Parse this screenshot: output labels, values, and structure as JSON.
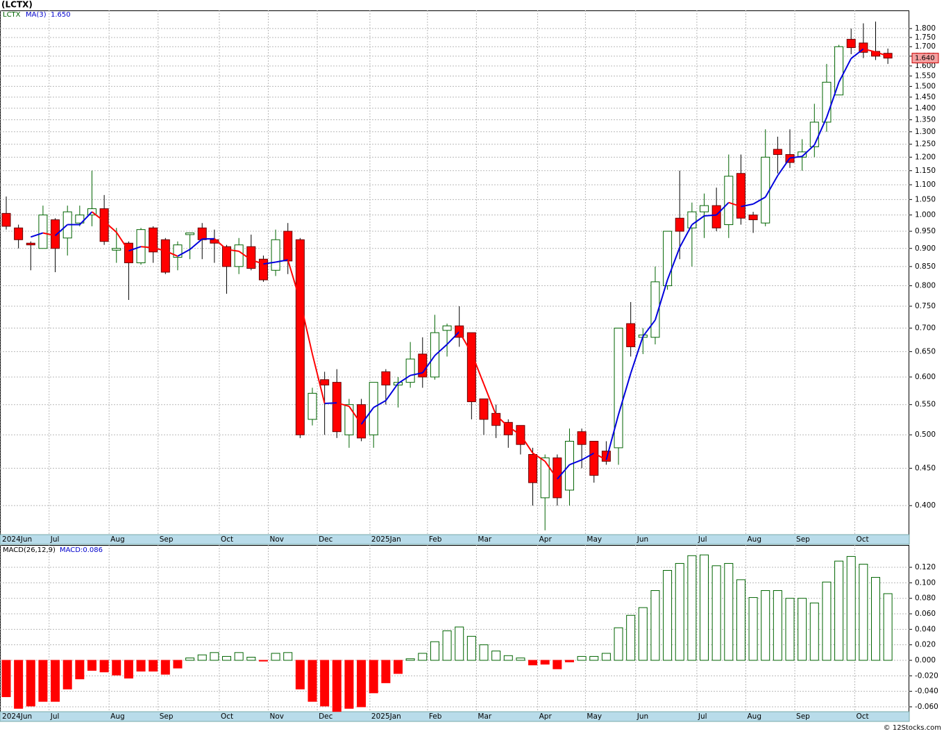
{
  "chart_data": [
    {
      "type": "candlestick",
      "title": "(LCTX)",
      "symbol": "LCTX",
      "log": true,
      "grid": true,
      "up_color": "#006400",
      "down_color": "#ff0000",
      "categories": [
        null,
        null,
        null,
        null,
        null,
        null,
        null,
        null,
        null,
        null,
        null,
        null,
        null,
        null,
        null,
        null,
        null,
        null,
        null,
        null,
        null,
        null,
        null,
        null,
        null,
        null,
        null,
        null,
        null,
        null,
        null,
        null,
        null,
        null,
        null,
        null,
        null,
        null,
        null,
        null,
        null,
        null,
        null,
        null,
        null,
        null,
        null,
        null,
        null,
        null,
        null,
        null,
        null,
        null,
        null,
        null,
        null,
        null,
        null,
        null,
        null,
        null,
        null,
        null,
        null,
        null,
        null,
        null,
        null,
        null,
        null,
        null,
        null
      ],
      "open": [
        1.005,
        0.96,
        0.915,
        0.9,
        0.985,
        0.93,
        0.975,
        1.0,
        1.02,
        0.895,
        0.915,
        0.86,
        0.96,
        0.925,
        0.875,
        0.94,
        0.96,
        0.925,
        0.905,
        0.85,
        0.905,
        0.87,
        0.84,
        0.95,
        0.925,
        0.525,
        0.595,
        0.59,
        0.5,
        0.55,
        0.5,
        0.61,
        0.585,
        0.59,
        0.645,
        0.6,
        0.695,
        0.705,
        0.69,
        0.56,
        0.535,
        0.52,
        0.515,
        0.47,
        0.41,
        0.465,
        0.42,
        0.505,
        0.49,
        0.475,
        0.48,
        0.71,
        0.68,
        0.68,
        0.8,
        0.99,
        0.96,
        1.01,
        1.03,
        0.97,
        1.14,
        1.0,
        0.975,
        1.23,
        1.21,
        1.2,
        1.24,
        1.34,
        1.46,
        1.74,
        1.72,
        1.675,
        1.665
      ],
      "high": [
        1.06,
        0.97,
        0.92,
        1.03,
        0.99,
        1.03,
        1.03,
        1.15,
        1.065,
        0.96,
        0.92,
        0.96,
        0.965,
        0.93,
        0.92,
        0.945,
        0.975,
        0.955,
        0.91,
        0.93,
        0.94,
        0.88,
        0.955,
        0.975,
        0.93,
        0.58,
        0.61,
        0.615,
        0.56,
        0.56,
        0.59,
        0.615,
        0.6,
        0.67,
        0.68,
        0.73,
        0.71,
        0.75,
        0.69,
        0.56,
        0.55,
        0.525,
        0.515,
        0.48,
        0.47,
        0.47,
        0.51,
        0.51,
        0.49,
        0.49,
        0.7,
        0.76,
        0.7,
        0.85,
        0.95,
        1.15,
        1.04,
        1.07,
        1.09,
        1.21,
        1.21,
        1.01,
        1.31,
        1.28,
        1.31,
        1.27,
        1.42,
        1.61,
        1.71,
        1.8,
        1.83,
        1.84,
        1.69
      ],
      "low": [
        0.955,
        0.9,
        0.84,
        0.9,
        0.835,
        0.88,
        0.965,
        0.965,
        0.91,
        0.86,
        0.765,
        0.855,
        0.86,
        0.83,
        0.84,
        0.87,
        0.87,
        0.86,
        0.78,
        0.83,
        0.84,
        0.81,
        0.825,
        0.83,
        0.495,
        0.515,
        0.5,
        0.495,
        0.48,
        0.49,
        0.48,
        0.55,
        0.545,
        0.58,
        0.58,
        0.595,
        0.64,
        0.66,
        0.525,
        0.5,
        0.495,
        0.48,
        0.47,
        0.4,
        0.37,
        0.4,
        0.4,
        0.45,
        0.43,
        0.455,
        0.455,
        0.64,
        0.645,
        0.665,
        0.79,
        0.87,
        0.85,
        0.93,
        0.95,
        0.93,
        0.97,
        0.945,
        0.965,
        1.14,
        1.16,
        1.15,
        1.2,
        1.3,
        1.46,
        1.66,
        1.64,
        1.63,
        1.61
      ],
      "close": [
        0.965,
        0.925,
        0.91,
        1.0,
        0.9,
        1.01,
        1.0,
        1.02,
        0.92,
        0.9,
        0.86,
        0.955,
        0.89,
        0.835,
        0.91,
        0.945,
        0.925,
        0.915,
        0.85,
        0.91,
        0.845,
        0.815,
        0.925,
        0.865,
        0.5,
        0.57,
        0.585,
        0.505,
        0.55,
        0.495,
        0.59,
        0.585,
        0.59,
        0.635,
        0.6,
        0.69,
        0.705,
        0.68,
        0.555,
        0.525,
        0.515,
        0.5,
        0.485,
        0.43,
        0.465,
        0.41,
        0.49,
        0.485,
        0.44,
        0.46,
        0.7,
        0.66,
        0.685,
        0.81,
        0.95,
        0.95,
        1.01,
        1.03,
        0.96,
        1.13,
        0.99,
        0.985,
        1.2,
        1.21,
        1.18,
        1.22,
        1.34,
        1.52,
        1.7,
        1.695,
        1.67,
        1.65,
        1.64
      ],
      "ma": {
        "name": "MA(3)",
        "value_label": "1.650",
        "up_color": "#0000dd",
        "down_color": "#ff0000",
        "values": [
          null,
          null,
          0.933,
          0.945,
          0.937,
          0.97,
          0.97,
          1.01,
          0.98,
          0.947,
          0.893,
          0.905,
          0.902,
          0.893,
          0.878,
          0.897,
          0.927,
          0.928,
          0.897,
          0.892,
          0.868,
          0.857,
          0.862,
          0.868,
          0.763,
          0.645,
          0.552,
          0.553,
          0.547,
          0.517,
          0.545,
          0.557,
          0.588,
          0.603,
          0.608,
          0.642,
          0.665,
          0.692,
          0.647,
          0.587,
          0.532,
          0.513,
          0.5,
          0.472,
          0.46,
          0.435,
          0.455,
          0.462,
          0.472,
          0.462,
          0.533,
          0.607,
          0.682,
          0.718,
          0.815,
          0.903,
          0.97,
          0.997,
          1.0,
          1.04,
          1.027,
          1.035,
          1.058,
          1.132,
          1.197,
          1.203,
          1.247,
          1.36,
          1.52,
          1.638,
          1.688,
          1.672,
          1.65
        ]
      },
      "last_price": {
        "value": 1.64,
        "label": "1.640"
      },
      "ylim": [
        0.365,
        1.906
      ],
      "yticks": [
        {
          "value": 0.4,
          "label": "0.400"
        },
        {
          "value": 0.45,
          "label": "0.450"
        },
        {
          "value": 0.5,
          "label": "0.500"
        },
        {
          "value": 0.55,
          "label": "0.550"
        },
        {
          "value": 0.6,
          "label": "0.600"
        },
        {
          "value": 0.65,
          "label": "0.650"
        },
        {
          "value": 0.7,
          "label": "0.700"
        },
        {
          "value": 0.75,
          "label": "0.750"
        },
        {
          "value": 0.8,
          "label": "0.800"
        },
        {
          "value": 0.85,
          "label": "0.850"
        },
        {
          "value": 0.9,
          "label": "0.900"
        },
        {
          "value": 0.95,
          "label": "0.950"
        },
        {
          "value": 1.0,
          "label": "1.000"
        },
        {
          "value": 1.05,
          "label": "1.050"
        },
        {
          "value": 1.1,
          "label": "1.100"
        },
        {
          "value": 1.15,
          "label": "1.150"
        },
        {
          "value": 1.2,
          "label": "1.200"
        },
        {
          "value": 1.25,
          "label": "1.250"
        },
        {
          "value": 1.3,
          "label": "1.300"
        },
        {
          "value": 1.35,
          "label": "1.350"
        },
        {
          "value": 1.4,
          "label": "1.400"
        },
        {
          "value": 1.45,
          "label": "1.450"
        },
        {
          "value": 1.5,
          "label": "1.500"
        },
        {
          "value": 1.55,
          "label": "1.550"
        },
        {
          "value": 1.6,
          "label": "1.600"
        },
        {
          "value": 1.65,
          "label": "1.650"
        },
        {
          "value": 1.7,
          "label": "1.700"
        },
        {
          "value": 1.75,
          "label": "1.750"
        },
        {
          "value": 1.8,
          "label": "1.800"
        }
      ],
      "xlim": [
        -0.51,
        73.75
      ],
      "xticks": [
        {
          "value": -0.45,
          "label": "2024Jun"
        },
        {
          "value": 3.5,
          "label": "Jul"
        },
        {
          "value": 8.4,
          "label": "Aug"
        },
        {
          "value": 12.4,
          "label": "Sep"
        },
        {
          "value": 17.4,
          "label": "Oct"
        },
        {
          "value": 21.4,
          "label": "Nov"
        },
        {
          "value": 25.4,
          "label": "Dec"
        },
        {
          "value": 29.7,
          "label": "2025Jan"
        },
        {
          "value": 34.4,
          "label": "Feb"
        },
        {
          "value": 38.4,
          "label": "Mar"
        },
        {
          "value": 43.4,
          "label": "Apr"
        },
        {
          "value": 47.3,
          "label": "May"
        },
        {
          "value": 51.4,
          "label": "Jun"
        },
        {
          "value": 56.4,
          "label": "Jul"
        },
        {
          "value": 60.4,
          "label": "Aug"
        },
        {
          "value": 64.4,
          "label": "Sep"
        },
        {
          "value": 69.3,
          "label": "Oct"
        }
      ]
    },
    {
      "type": "bar",
      "name": "MACD(26,12,9)",
      "value_label": "MACD:0.086",
      "grid": true,
      "up_color": "#006400",
      "down_color": "#ff0000",
      "values": [
        -0.047,
        -0.062,
        -0.059,
        -0.053,
        -0.053,
        -0.037,
        -0.024,
        -0.013,
        -0.015,
        -0.019,
        -0.023,
        -0.014,
        -0.014,
        -0.018,
        -0.01,
        0.003,
        0.007,
        0.01,
        0.005,
        0.01,
        0.004,
        -0.001,
        0.009,
        0.01,
        -0.037,
        -0.053,
        -0.059,
        -0.066,
        -0.062,
        -0.06,
        -0.042,
        -0.029,
        -0.017,
        0.002,
        0.009,
        0.024,
        0.038,
        0.043,
        0.031,
        0.02,
        0.012,
        0.006,
        0.003,
        -0.006,
        -0.005,
        -0.011,
        -0.002,
        0.005,
        0.005,
        0.009,
        0.042,
        0.058,
        0.068,
        0.09,
        0.116,
        0.125,
        0.135,
        0.136,
        0.122,
        0.125,
        0.104,
        0.081,
        0.09,
        0.09,
        0.08,
        0.08,
        0.074,
        0.101,
        0.128,
        0.134,
        0.124,
        0.107,
        0.086
      ],
      "ylim": [
        -0.0663,
        0.1487
      ],
      "yticks": [
        {
          "value": -0.06,
          "label": "-0.060"
        },
        {
          "value": -0.04,
          "label": "-0.040"
        },
        {
          "value": -0.02,
          "label": "-0.020"
        },
        {
          "value": 0,
          "label": "0.000"
        },
        {
          "value": 0.02,
          "label": "0.020"
        },
        {
          "value": 0.04,
          "label": "0.040"
        },
        {
          "value": 0.06,
          "label": "0.060"
        },
        {
          "value": 0.08,
          "label": "0.080"
        },
        {
          "value": 0.1,
          "label": "0.100"
        },
        {
          "value": 0.12,
          "label": "0.120"
        }
      ],
      "xlim": [
        -0.51,
        73.75
      ],
      "xticks": [
        {
          "value": -0.45,
          "label": "2024Jun"
        },
        {
          "value": 3.5,
          "label": "Jul"
        },
        {
          "value": 8.4,
          "label": "Aug"
        },
        {
          "value": 12.4,
          "label": "Sep"
        },
        {
          "value": 17.4,
          "label": "Oct"
        },
        {
          "value": 21.4,
          "label": "Nov"
        },
        {
          "value": 25.4,
          "label": "Dec"
        },
        {
          "value": 29.7,
          "label": "2025Jan"
        },
        {
          "value": 34.4,
          "label": "Feb"
        },
        {
          "value": 38.4,
          "label": "Mar"
        },
        {
          "value": 43.4,
          "label": "Apr"
        },
        {
          "value": 47.3,
          "label": "May"
        },
        {
          "value": 51.4,
          "label": "Jun"
        },
        {
          "value": 56.4,
          "label": "Jul"
        },
        {
          "value": 60.4,
          "label": "Aug"
        },
        {
          "value": 64.4,
          "label": "Sep"
        },
        {
          "value": 69.3,
          "label": "Oct"
        }
      ]
    }
  ],
  "footer": "© 12Stocks.com"
}
